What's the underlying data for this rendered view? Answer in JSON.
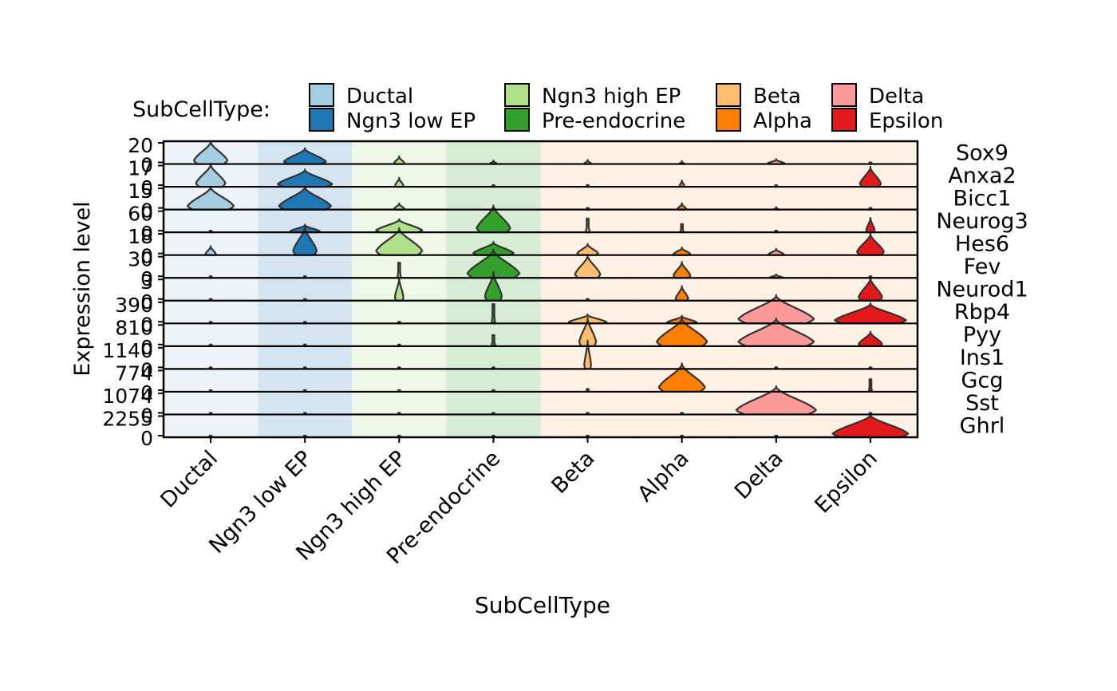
{
  "chart_data": {
    "type": "violin",
    "legend": {
      "title": "SubCellType:",
      "position": "top",
      "entries": [
        {
          "label": "Ductal",
          "color": "#A6CEE3"
        },
        {
          "label": "Ngn3 low EP",
          "color": "#1F78B4"
        },
        {
          "label": "Ngn3 high EP",
          "color": "#B2DF8A"
        },
        {
          "label": "Pre-endocrine",
          "color": "#33A02C"
        },
        {
          "label": "Beta",
          "color": "#FDBF6F"
        },
        {
          "label": "Alpha",
          "color": "#FF7F00"
        },
        {
          "label": "Delta",
          "color": "#FB9A99"
        },
        {
          "label": "Epsilon",
          "color": "#E31A1C"
        }
      ]
    },
    "categories": [
      "Ductal",
      "Ngn3 low EP",
      "Ngn3 high EP",
      "Pre-endocrine",
      "Beta",
      "Alpha",
      "Delta",
      "Epsilon"
    ],
    "category_colors": [
      "#A6CEE3",
      "#1F78B4",
      "#B2DF8A",
      "#33A02C",
      "#FDBF6F",
      "#FF7F00",
      "#FB9A99",
      "#E31A1C"
    ],
    "background_colors": [
      "#EDF3F8",
      "#D4E4F0",
      "#EFF7E8",
      "#D7ECD5",
      "#FEF1E3",
      "#FEF1E3",
      "#FEF1E3",
      "#FEF1E3"
    ],
    "xlabel": "SubCellType",
    "ylabel": "Expression level",
    "facets": [
      {
        "gene": "Sox9",
        "ymin": 0,
        "ymax": 20,
        "ticks": [
          "0",
          "20"
        ],
        "violins": [
          [
            0.8,
            0.4
          ],
          [
            0.55,
            0.5
          ],
          [
            0.25,
            0.12
          ],
          [
            0.1,
            0.08
          ],
          [
            0.12,
            0.08
          ],
          [
            0.08,
            0.06
          ],
          [
            0.15,
            0.2
          ],
          [
            0.02,
            0.04
          ]
        ]
      },
      {
        "gene": "Anxa2",
        "ymin": 0,
        "ymax": 17,
        "ticks": [
          "0",
          "17"
        ],
        "violins": [
          [
            0.8,
            0.35
          ],
          [
            0.6,
            0.65
          ],
          [
            0.3,
            0.1
          ],
          [
            0.04,
            0.05
          ],
          [
            0.06,
            0.05
          ],
          [
            0.2,
            0.06
          ],
          [
            0.02,
            0.03
          ],
          [
            0.7,
            0.25
          ]
        ]
      },
      {
        "gene": "Bicc1",
        "ymin": 0,
        "ymax": 15,
        "ticks": [
          "0",
          "15"
        ],
        "violins": [
          [
            0.8,
            0.55
          ],
          [
            0.8,
            0.62
          ],
          [
            0.2,
            0.12
          ],
          [
            0.06,
            0.05
          ],
          [
            0.05,
            0.05
          ],
          [
            0.2,
            0.1
          ],
          [
            0.05,
            0.06
          ],
          [
            0.05,
            0.05
          ]
        ]
      },
      {
        "gene": "Neurog3",
        "ymin": 0,
        "ymax": 60,
        "ticks": [
          "0",
          "60"
        ],
        "violins": [
          [
            0.02,
            0.03
          ],
          [
            0.25,
            0.35
          ],
          [
            0.45,
            0.55
          ],
          [
            0.95,
            0.4
          ],
          [
            0.5,
            0.05
          ],
          [
            0.3,
            0.04
          ],
          [
            0.02,
            0.03
          ],
          [
            0.5,
            0.1
          ]
        ]
      },
      {
        "gene": "Hes6",
        "ymin": 0,
        "ymax": 18,
        "ticks": [
          "0",
          "18"
        ],
        "violins": [
          [
            0.3,
            0.12
          ],
          [
            1.0,
            0.28
          ],
          [
            0.95,
            0.55
          ],
          [
            0.45,
            0.48
          ],
          [
            0.38,
            0.25
          ],
          [
            0.25,
            0.2
          ],
          [
            0.2,
            0.18
          ],
          [
            0.75,
            0.32
          ]
        ]
      },
      {
        "gene": "Fev",
        "ymin": 0,
        "ymax": 30,
        "ticks": [
          "0",
          "30"
        ],
        "violins": [
          [
            0.02,
            0.03
          ],
          [
            0.02,
            0.03
          ],
          [
            0.55,
            0.04
          ],
          [
            1.0,
            0.62
          ],
          [
            0.8,
            0.3
          ],
          [
            0.55,
            0.2
          ],
          [
            0.1,
            0.15
          ],
          [
            0.05,
            0.03
          ]
        ]
      },
      {
        "gene": "Neurod1",
        "ymin": 0,
        "ymax": 3,
        "ticks": [
          "0",
          "3"
        ],
        "violins": [
          [
            0.02,
            0.03
          ],
          [
            0.02,
            0.03
          ],
          [
            0.8,
            0.1
          ],
          [
            1.0,
            0.2
          ],
          [
            0.02,
            0.03
          ],
          [
            0.5,
            0.15
          ],
          [
            0.02,
            0.03
          ],
          [
            0.8,
            0.28
          ]
        ]
      },
      {
        "gene": "Rbp4",
        "ymin": 0,
        "ymax": 390,
        "ticks": [
          "0",
          "390"
        ],
        "violins": [
          [
            0.02,
            0.03
          ],
          [
            0.02,
            0.03
          ],
          [
            0.02,
            0.03
          ],
          [
            0.7,
            0.04
          ],
          [
            0.3,
            0.45
          ],
          [
            0.25,
            0.35
          ],
          [
            1.0,
            0.9
          ],
          [
            0.7,
            0.85
          ]
        ]
      },
      {
        "gene": "Pyy",
        "ymin": 0,
        "ymax": 810,
        "ticks": [
          "0",
          "810"
        ],
        "violins": [
          [
            0.02,
            0.03
          ],
          [
            0.02,
            0.03
          ],
          [
            0.02,
            0.03
          ],
          [
            0.4,
            0.05
          ],
          [
            1.0,
            0.2
          ],
          [
            1.0,
            0.6
          ],
          [
            0.98,
            0.9
          ],
          [
            0.5,
            0.28
          ]
        ]
      },
      {
        "gene": "Ins1",
        "ymin": 0,
        "ymax": 1140,
        "ticks": [
          "0",
          "1140"
        ],
        "violins": [
          [
            0.02,
            0.03
          ],
          [
            0.02,
            0.03
          ],
          [
            0.02,
            0.03
          ],
          [
            0.02,
            0.03
          ],
          [
            1.0,
            0.08
          ],
          [
            0.02,
            0.03
          ],
          [
            0.02,
            0.03
          ],
          [
            0.02,
            0.03
          ]
        ]
      },
      {
        "gene": "Gcg",
        "ymin": 0,
        "ymax": 774,
        "ticks": [
          "0",
          "774"
        ],
        "violins": [
          [
            0.02,
            0.03
          ],
          [
            0.02,
            0.03
          ],
          [
            0.02,
            0.03
          ],
          [
            0.02,
            0.03
          ],
          [
            0.1,
            0.04
          ],
          [
            1.0,
            0.55
          ],
          [
            0.02,
            0.03
          ],
          [
            0.45,
            0.04
          ]
        ]
      },
      {
        "gene": "Sst",
        "ymin": 0,
        "ymax": 1074,
        "ticks": [
          "0",
          "1074"
        ],
        "violins": [
          [
            0.02,
            0.03
          ],
          [
            0.02,
            0.03
          ],
          [
            0.02,
            0.03
          ],
          [
            0.02,
            0.03
          ],
          [
            0.02,
            0.03
          ],
          [
            0.02,
            0.03
          ],
          [
            1.0,
            0.95
          ],
          [
            0.02,
            0.03
          ]
        ]
      },
      {
        "gene": "Ghrl",
        "ymin": 0,
        "ymax": 2255,
        "ticks": [
          "0",
          "2255"
        ],
        "violins": [
          [
            0.02,
            0.03
          ],
          [
            0.02,
            0.03
          ],
          [
            0.02,
            0.03
          ],
          [
            0.02,
            0.03
          ],
          [
            0.02,
            0.03
          ],
          [
            0.02,
            0.03
          ],
          [
            0.05,
            0.04
          ],
          [
            0.8,
            0.9
          ]
        ]
      }
    ]
  }
}
